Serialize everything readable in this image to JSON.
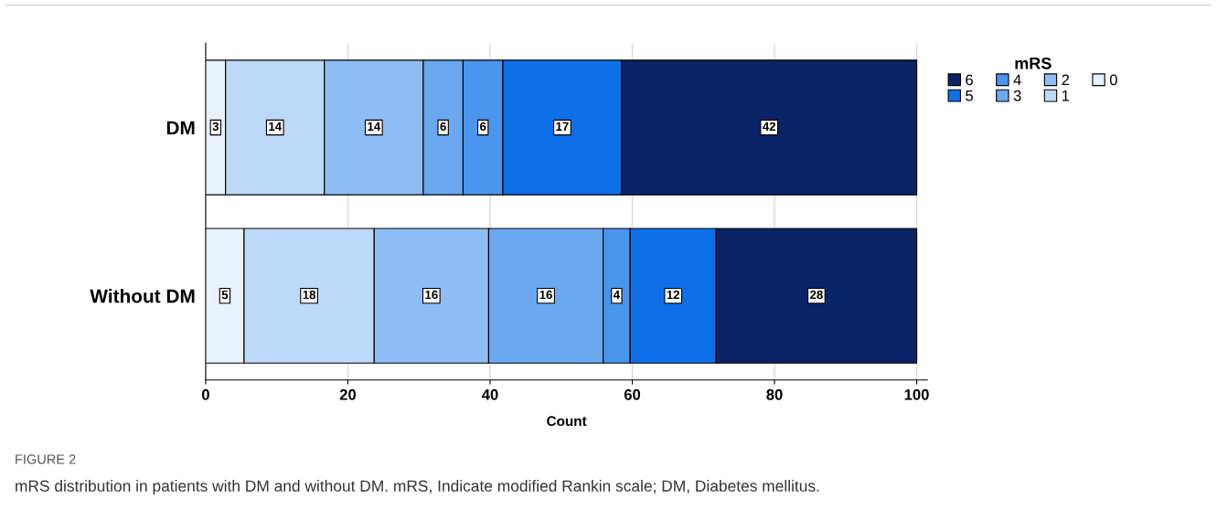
{
  "chart_data": {
    "type": "bar",
    "orientation": "horizontal",
    "stacked": true,
    "categories": [
      "DM",
      "Without DM"
    ],
    "series": [
      {
        "name": "0",
        "color": "#e9f1fc",
        "values": [
          2.8,
          5.4
        ],
        "value_labels": [
          "3",
          "5"
        ]
      },
      {
        "name": "1",
        "color": "#bcd9f7",
        "values": [
          13.9,
          18.3
        ],
        "value_labels": [
          "14",
          "18"
        ]
      },
      {
        "name": "2",
        "color": "#8dbdf4",
        "values": [
          13.9,
          16.1
        ],
        "value_labels": [
          "14",
          "16"
        ]
      },
      {
        "name": "3",
        "color": "#6aa8f0",
        "values": [
          5.6,
          16.1
        ],
        "value_labels": [
          "6",
          "16"
        ]
      },
      {
        "name": "4",
        "color": "#4a95ee",
        "values": [
          5.6,
          3.8
        ],
        "value_labels": [
          "6",
          "4"
        ]
      },
      {
        "name": "5",
        "color": "#0d70e9",
        "values": [
          16.7,
          12.1
        ],
        "value_labels": [
          "17",
          "12"
        ]
      },
      {
        "name": "6",
        "color": "#0b2468",
        "values": [
          41.5,
          28.2
        ],
        "value_labels": [
          "42",
          "28"
        ]
      }
    ],
    "xlim": [
      0,
      101.5
    ],
    "xticks": [
      0,
      20,
      40,
      60,
      80,
      100
    ],
    "xlabel": "Count",
    "legend_title": "mRS",
    "legend": "right",
    "grid": "x",
    "annotations": [
      "FIGURE 2",
      "mRS distribution in patients with DM and without DM. mRS, Indicate modified Rankin scale; DM, Diabetes mellitus."
    ]
  }
}
